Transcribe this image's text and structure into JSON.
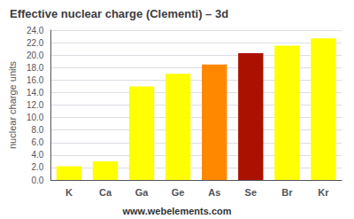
{
  "chart_data": {
    "type": "bar",
    "title": "Effective nuclear charge (Clementi) – 3d",
    "ylabel": "nuclear charge units",
    "annotations": [
      "www.webelements.com"
    ],
    "categories": [
      "K",
      "Ca",
      "Ga",
      "Ge",
      "As",
      "Se",
      "Br",
      "Kr"
    ],
    "values": [
      2.2,
      3.0,
      15.0,
      17.0,
      18.5,
      20.3,
      21.5,
      22.7
    ],
    "colors": [
      "#ffff00",
      "#ffff00",
      "#ffff00",
      "#ffff00",
      "#ff8800",
      "#aa1100",
      "#ffff00",
      "#ffff00"
    ],
    "ylim": [
      0,
      24
    ],
    "yticks": [
      {
        "value": 0,
        "label": "0.0"
      },
      {
        "value": 2,
        "label": "2.0"
      },
      {
        "value": 4,
        "label": "4.0"
      },
      {
        "value": 6,
        "label": "6.0"
      },
      {
        "value": 8,
        "label": "8.0"
      },
      {
        "value": 10,
        "label": "10.0"
      },
      {
        "value": 12,
        "label": "12.0"
      },
      {
        "value": 14,
        "label": "14.0"
      },
      {
        "value": 16,
        "label": "16.0"
      },
      {
        "value": 18,
        "label": "18.0"
      },
      {
        "value": 20,
        "label": "20.0"
      },
      {
        "value": 22,
        "label": "22.0"
      },
      {
        "value": 24,
        "label": "24.0"
      }
    ],
    "grid": true
  }
}
